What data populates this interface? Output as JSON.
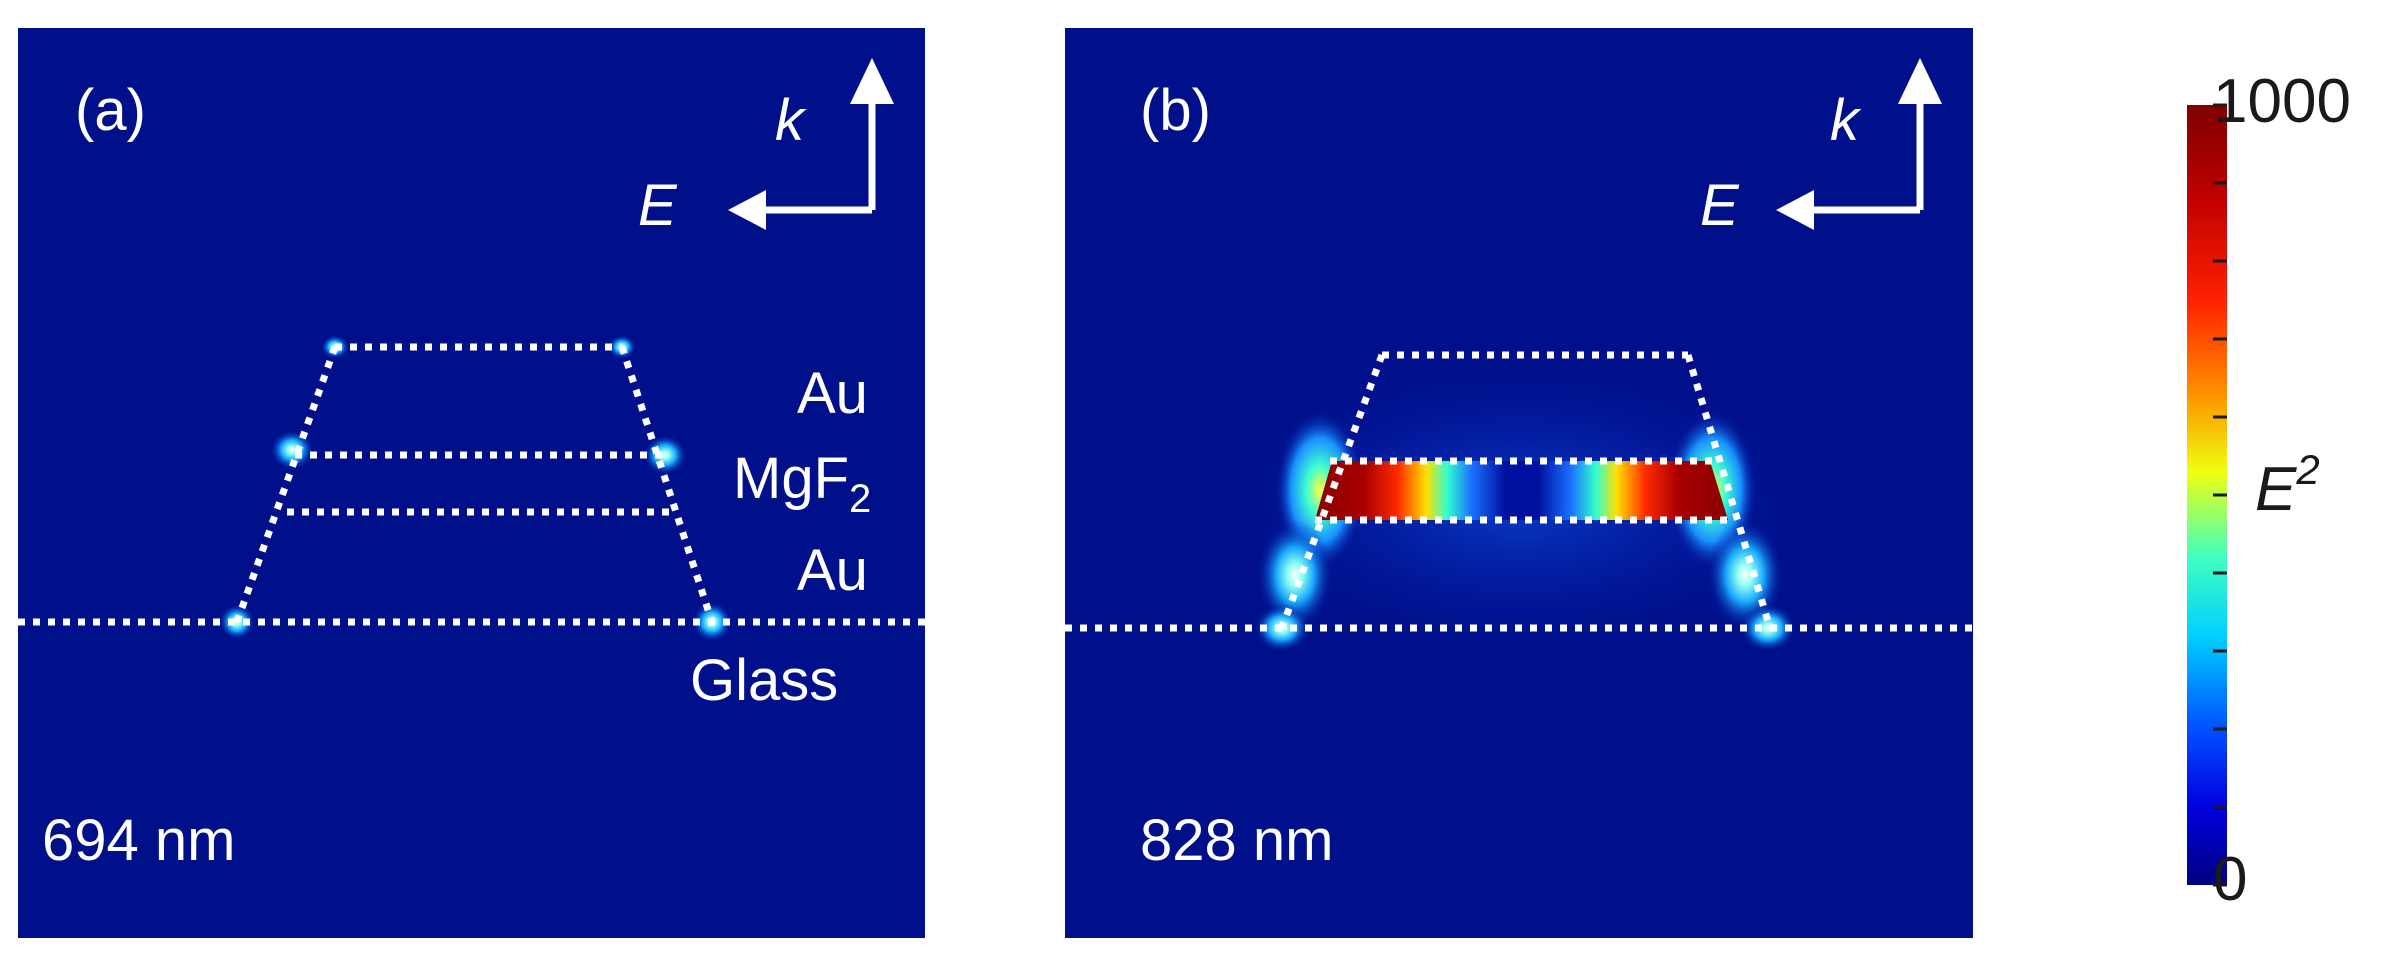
{
  "panels": [
    {
      "id": "a",
      "tag": "(a)",
      "wavelength": "694 nm",
      "k_label": "k",
      "e_label": "E",
      "layer_labels": {
        "top": "Au",
        "middle_base": "MgF",
        "middle_sub": "2",
        "bottom": "Au",
        "substrate": "Glass"
      }
    },
    {
      "id": "b",
      "tag": "(b)",
      "wavelength": "828 nm",
      "k_label": "k",
      "e_label": "E"
    }
  ],
  "colorbar": {
    "max_label": "1000",
    "min_label": "0",
    "quantity_base": "E",
    "quantity_sup": "2",
    "colors": [
      "#7f0000",
      "#ff0000",
      "#ffff00",
      "#00ffff",
      "#0000ff",
      "#00007f"
    ]
  },
  "colors": {
    "field_background": "#00108a",
    "dotted_line": "#ffffff"
  }
}
